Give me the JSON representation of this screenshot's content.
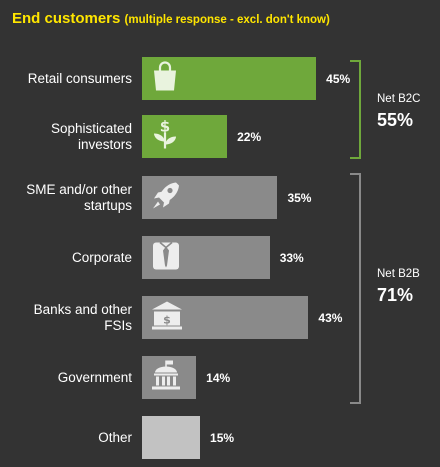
{
  "chart_data": {
    "type": "bar",
    "orientation": "horizontal",
    "title": "End customers",
    "subtitle": "(multiple response - excl. don't know)",
    "categories": [
      "Retail consumers",
      "Sophisticated investors",
      "SME and/or other startups",
      "Corporate",
      "Banks and other FSIs",
      "Government",
      "Other"
    ],
    "values": [
      45,
      22,
      35,
      33,
      43,
      14,
      15
    ],
    "value_labels": [
      "45%",
      "22%",
      "35%",
      "33%",
      "43%",
      "14%",
      "15%"
    ],
    "icons": [
      "shopping-bag-icon",
      "money-plant-icon",
      "rocket-icon",
      "shirt-tie-icon",
      "bank-icon",
      "government-building-icon",
      ""
    ],
    "bar_colors": [
      "#6FA83B",
      "#6FA83B",
      "#8A8A8A",
      "#8A8A8A",
      "#8A8A8A",
      "#8A8A8A",
      "#C2C2C2"
    ],
    "groups": [
      {
        "label": "Net B2C",
        "value": "55%",
        "color": "#6FA83B"
      },
      {
        "label": "Net B2B",
        "value": "71%",
        "color": "#8A8A8A"
      }
    ],
    "colors": {
      "background": "#333333",
      "title": "#FFE600",
      "text": "#FFFFFF"
    },
    "grid": false
  }
}
